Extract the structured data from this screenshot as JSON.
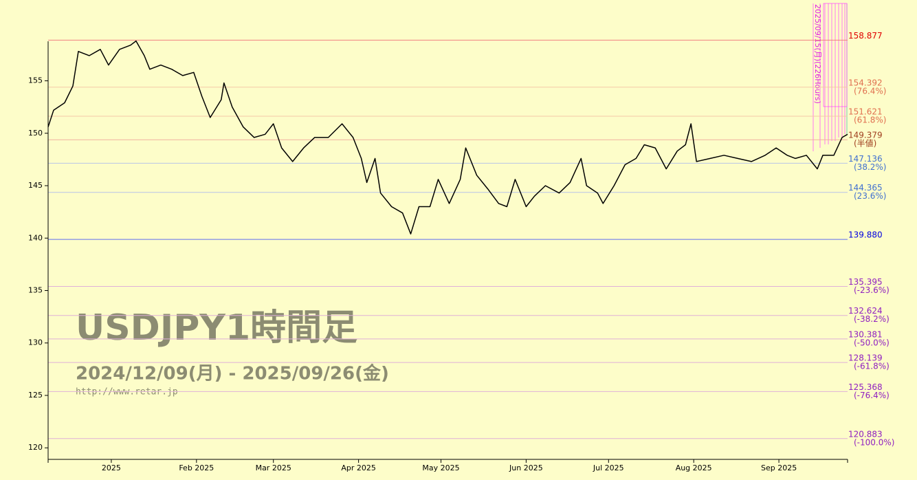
{
  "chart_data": {
    "type": "line",
    "title": "USDJPY1時間足",
    "subtitle": "2024/12/09(月) - 2025/09/26(金)",
    "source": "http://www.retar.jp",
    "annotations": [
      "2025/09/15(月)(226Hours)"
    ],
    "x": [
      "2024-12-09",
      "2024-12-11",
      "2024-12-15",
      "2024-12-18",
      "2024-12-20",
      "2024-12-24",
      "2024-12-28",
      "2024-12-31",
      "2025-01-04",
      "2025-01-08",
      "2025-01-10",
      "2025-01-13",
      "2025-01-15",
      "2025-01-19",
      "2025-01-23",
      "2025-01-27",
      "2025-01-31",
      "2025-02-03",
      "2025-02-06",
      "2025-02-10",
      "2025-02-11",
      "2025-02-14",
      "2025-02-18",
      "2025-02-22",
      "2025-02-26",
      "2025-03-01",
      "2025-03-04",
      "2025-03-08",
      "2025-03-12",
      "2025-03-16",
      "2025-03-21",
      "2025-03-26",
      "2025-03-30",
      "2025-04-02",
      "2025-04-04",
      "2025-04-07",
      "2025-04-09",
      "2025-04-13",
      "2025-04-17",
      "2025-04-20",
      "2025-04-23",
      "2025-04-27",
      "2025-04-30",
      "2025-05-04",
      "2025-05-08",
      "2025-05-10",
      "2025-05-14",
      "2025-05-18",
      "2025-05-22",
      "2025-05-25",
      "2025-05-28",
      "2025-06-01",
      "2025-06-04",
      "2025-06-08",
      "2025-06-13",
      "2025-06-17",
      "2025-06-21",
      "2025-06-23",
      "2025-06-27",
      "2025-06-29",
      "2025-07-03",
      "2025-07-07",
      "2025-07-11",
      "2025-07-14",
      "2025-07-18",
      "2025-07-22",
      "2025-07-26",
      "2025-07-29",
      "2025-07-31",
      "2025-08-02",
      "2025-08-07",
      "2025-08-12",
      "2025-08-17",
      "2025-08-22",
      "2025-08-27",
      "2025-08-31",
      "2025-09-04",
      "2025-09-07",
      "2025-09-11",
      "2025-09-15",
      "2025-09-17",
      "2025-09-21",
      "2025-09-24",
      "2025-09-26"
    ],
    "values": [
      150.6,
      152.2,
      152.9,
      154.5,
      157.8,
      157.4,
      158.0,
      156.5,
      158.0,
      158.4,
      158.8,
      157.4,
      156.1,
      156.5,
      156.1,
      155.5,
      155.8,
      153.5,
      151.5,
      153.2,
      154.8,
      152.5,
      150.6,
      149.6,
      149.9,
      150.9,
      148.6,
      147.3,
      148.6,
      149.6,
      149.6,
      150.9,
      149.6,
      147.6,
      145.3,
      147.6,
      144.3,
      143.0,
      142.4,
      140.4,
      143.0,
      143.0,
      145.6,
      143.3,
      145.6,
      148.6,
      146.0,
      144.7,
      143.3,
      143.0,
      145.6,
      143.0,
      144.0,
      145.0,
      144.3,
      145.3,
      147.6,
      145.0,
      144.3,
      143.3,
      145.0,
      147.0,
      147.6,
      148.9,
      148.6,
      146.6,
      148.3,
      148.9,
      150.9,
      147.3,
      147.6,
      147.9,
      147.6,
      147.3,
      147.9,
      148.6,
      147.9,
      147.6,
      147.9,
      146.6,
      147.9,
      147.9,
      149.6,
      149.9
    ],
    "color": "#000000",
    "xlim": [
      "2024-12-09",
      "2025-09-26"
    ],
    "xticks": [
      {
        "value": "2025-01-01",
        "label": "2025"
      },
      {
        "value": "2025-02-01",
        "label": "Feb 2025"
      },
      {
        "value": "2025-03-01",
        "label": "Mar 2025"
      },
      {
        "value": "2025-04-01",
        "label": "Apr 2025"
      },
      {
        "value": "2025-05-01",
        "label": "May 2025"
      },
      {
        "value": "2025-06-01",
        "label": "Jun 2025"
      },
      {
        "value": "2025-07-01",
        "label": "Jul 2025"
      },
      {
        "value": "2025-08-01",
        "label": "Aug 2025"
      },
      {
        "value": "2025-09-01",
        "label": "Sep 2025"
      }
    ],
    "ylim": [
      118.9,
      159.1
    ],
    "yticks": [
      120,
      125,
      130,
      135,
      140,
      145,
      150,
      155
    ],
    "levels": [
      {
        "value": 158.877,
        "color": "#e00000",
        "line_color": "#f08080"
      },
      {
        "value": 154.392,
        "note": "(76.4%)",
        "color": "#e07050",
        "line_color": "#f5c8a8"
      },
      {
        "value": 151.621,
        "note": "(61.8%)",
        "color": "#e07050",
        "line_color": "#f5c8a8"
      },
      {
        "value": 149.379,
        "note": "(半値)",
        "color": "#a04020",
        "line_color": "#f0b0a0"
      },
      {
        "value": 147.136,
        "note": "(38.2%)",
        "color": "#4070d0",
        "line_color": "#b8c4e8"
      },
      {
        "value": 144.365,
        "note": "(23.6%)",
        "color": "#4070d0",
        "line_color": "#b8c4e8"
      },
      {
        "value": 139.88,
        "label": "139.880",
        "color": "#0000e0",
        "line_color": "#6070f0"
      },
      {
        "value": 135.395,
        "note": "(-23.6%)",
        "color": "#9020c0",
        "line_color": "#e0b0d8"
      },
      {
        "value": 132.624,
        "note": "(-38.2%)",
        "color": "#9020c0",
        "line_color": "#e0b0d8"
      },
      {
        "value": 130.381,
        "note": "(-50.0%)",
        "color": "#9020c0",
        "line_color": "#e0b0d8"
      },
      {
        "value": 128.139,
        "note": "(-61.8%)",
        "color": "#9020c0",
        "line_color": "#e0b0d8"
      },
      {
        "value": 125.368,
        "note": "(-76.4%)",
        "color": "#9020c0",
        "line_color": "#e0b0d8"
      },
      {
        "value": 120.883,
        "note": "(-100.0%)",
        "color": "#9020c0",
        "line_color": "#e0b0d8"
      }
    ]
  }
}
